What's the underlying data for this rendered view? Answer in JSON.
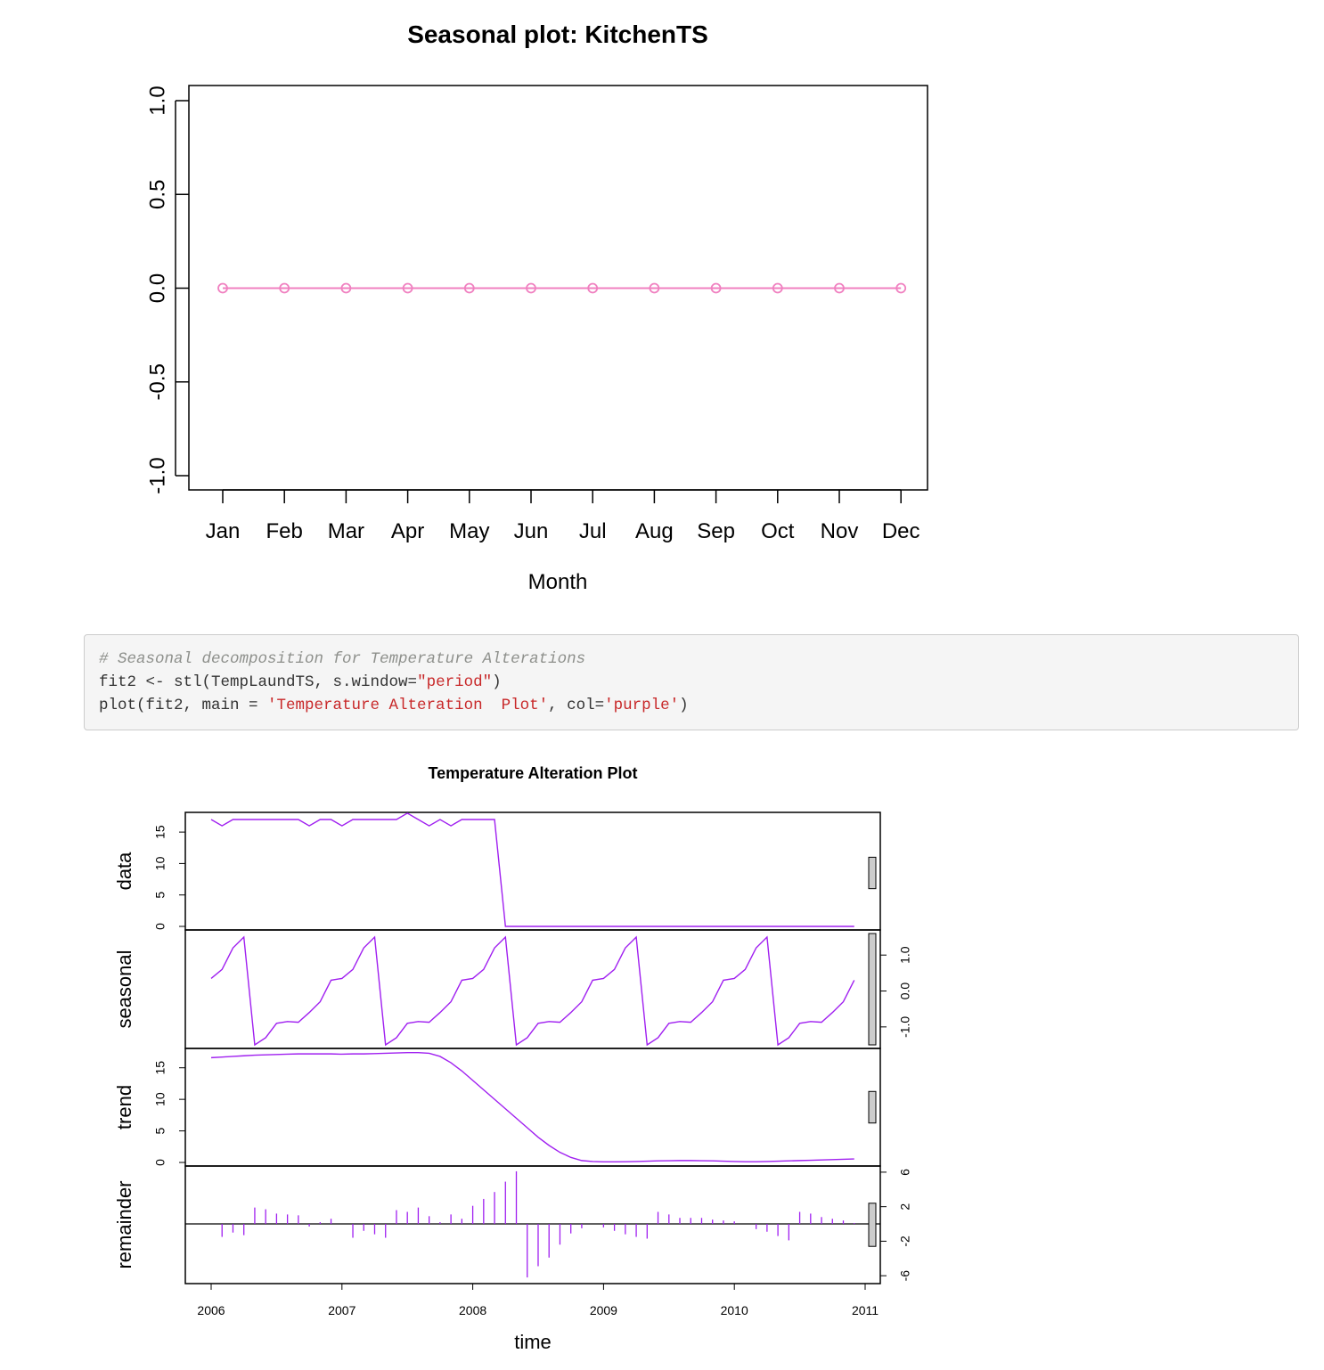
{
  "colors": {
    "seasonal_line": "#f080c0",
    "stl_line": "#a020f0",
    "code_string": "#c82829",
    "code_comment": "#8e908c"
  },
  "chart_data": [
    {
      "type": "line",
      "title": "Seasonal plot: KitchenTS",
      "xlabel": "Month",
      "ylabel": "",
      "categories": [
        "Jan",
        "Feb",
        "Mar",
        "Apr",
        "May",
        "Jun",
        "Jul",
        "Aug",
        "Sep",
        "Oct",
        "Nov",
        "Dec"
      ],
      "values": [
        0,
        0,
        0,
        0,
        0,
        0,
        0,
        0,
        0,
        0,
        0,
        0
      ],
      "ylim": [
        -1.0,
        1.0
      ],
      "yticks": [
        "-1.0",
        "-0.5",
        "0.0",
        "0.5",
        "1.0"
      ],
      "marker": "open-circle",
      "grid": false
    },
    {
      "type": "line",
      "title": "Temperature Alteration  Plot",
      "xlabel": "time",
      "x_start": 2006.0,
      "x_step": 0.08333,
      "xticks": [
        "2006",
        "2007",
        "2008",
        "2009",
        "2010",
        "2011"
      ],
      "panels": [
        {
          "name": "data",
          "ylim": [
            0,
            17
          ],
          "yticks": [
            "0",
            "5",
            "10",
            "15"
          ],
          "values": [
            17,
            16,
            17,
            17,
            17,
            17,
            17,
            17,
            17,
            16,
            17,
            17,
            16,
            17,
            17,
            17,
            17,
            17,
            18,
            17,
            16,
            17,
            16,
            17,
            17,
            17,
            17,
            0,
            0,
            0,
            0,
            0,
            0,
            0,
            0,
            0,
            0,
            0,
            0,
            0,
            0,
            0,
            0,
            0,
            0,
            0,
            0,
            0,
            0,
            0,
            0,
            0,
            0,
            0,
            0,
            0,
            0,
            0,
            0,
            0
          ]
        },
        {
          "name": "seasonal",
          "ylim": [
            -1.5,
            1.6
          ],
          "yticks": [
            "-1.0",
            "0.0",
            "1.0"
          ],
          "values": [
            0.35,
            0.6,
            1.2,
            1.5,
            -1.5,
            -1.3,
            -0.9,
            -0.85,
            -0.87,
            -0.6,
            -0.3,
            0.3,
            0.35,
            0.6,
            1.2,
            1.5,
            -1.5,
            -1.3,
            -0.9,
            -0.85,
            -0.87,
            -0.6,
            -0.3,
            0.3,
            0.35,
            0.6,
            1.2,
            1.5,
            -1.5,
            -1.3,
            -0.9,
            -0.85,
            -0.87,
            -0.6,
            -0.3,
            0.3,
            0.35,
            0.6,
            1.2,
            1.5,
            -1.5,
            -1.3,
            -0.9,
            -0.85,
            -0.87,
            -0.6,
            -0.3,
            0.3,
            0.35,
            0.6,
            1.2,
            1.5,
            -1.5,
            -1.3,
            -0.9,
            -0.85,
            -0.87,
            -0.6,
            -0.3,
            0.3
          ]
        },
        {
          "name": "trend",
          "ylim": [
            0,
            17.5
          ],
          "yticks": [
            "0",
            "5",
            "10",
            "15"
          ],
          "values": [
            16.6,
            16.7,
            16.8,
            16.9,
            17.0,
            17.05,
            17.1,
            17.15,
            17.2,
            17.2,
            17.2,
            17.2,
            17.15,
            17.2,
            17.2,
            17.25,
            17.3,
            17.35,
            17.4,
            17.4,
            17.3,
            16.8,
            15.8,
            14.5,
            13.0,
            11.5,
            10.0,
            8.5,
            7.0,
            5.5,
            4.0,
            2.7,
            1.6,
            0.8,
            0.3,
            0.15,
            0.1,
            0.1,
            0.12,
            0.15,
            0.2,
            0.25,
            0.28,
            0.3,
            0.3,
            0.28,
            0.25,
            0.2,
            0.15,
            0.12,
            0.12,
            0.15,
            0.2,
            0.25,
            0.3,
            0.35,
            0.4,
            0.45,
            0.5,
            0.55
          ]
        },
        {
          "name": "remainder",
          "ylim": [
            -6.5,
            6.3
          ],
          "yticks": [
            "-6",
            "-2",
            "2",
            "6"
          ],
          "type": "bar",
          "values": [
            0,
            -1.5,
            -1.0,
            -1.3,
            1.9,
            1.7,
            1.2,
            1.1,
            1.0,
            -0.3,
            0.2,
            0.6,
            0,
            -1.6,
            -0.8,
            -1.2,
            -1.6,
            1.6,
            1.4,
            1.9,
            0.9,
            0.2,
            1.1,
            0.6,
            2.1,
            2.9,
            3.7,
            4.9,
            6.1,
            -6.2,
            -4.9,
            -3.9,
            -2.4,
            -1.1,
            -0.5,
            0,
            -0.4,
            -0.8,
            -1.2,
            -1.5,
            -1.7,
            1.4,
            1.1,
            0.7,
            0.7,
            0.7,
            0.5,
            0.4,
            0.3,
            0,
            -0.6,
            -0.9,
            -1.4,
            -1.9,
            1.4,
            1.2,
            0.8,
            0.6,
            0.4,
            0.1
          ]
        }
      ]
    }
  ],
  "code": {
    "comment": "# Seasonal decomposition for Temperature Alterations",
    "line2_a": "fit2 <- stl(TempLaundTS, s.window=",
    "line2_str": "\"period\"",
    "line2_b": ")",
    "line3_a": "plot(fit2, main = ",
    "line3_str1": "'Temperature Alteration  Plot'",
    "line3_b": ", col=",
    "line3_str2": "'purple'",
    "line3_c": ")"
  }
}
